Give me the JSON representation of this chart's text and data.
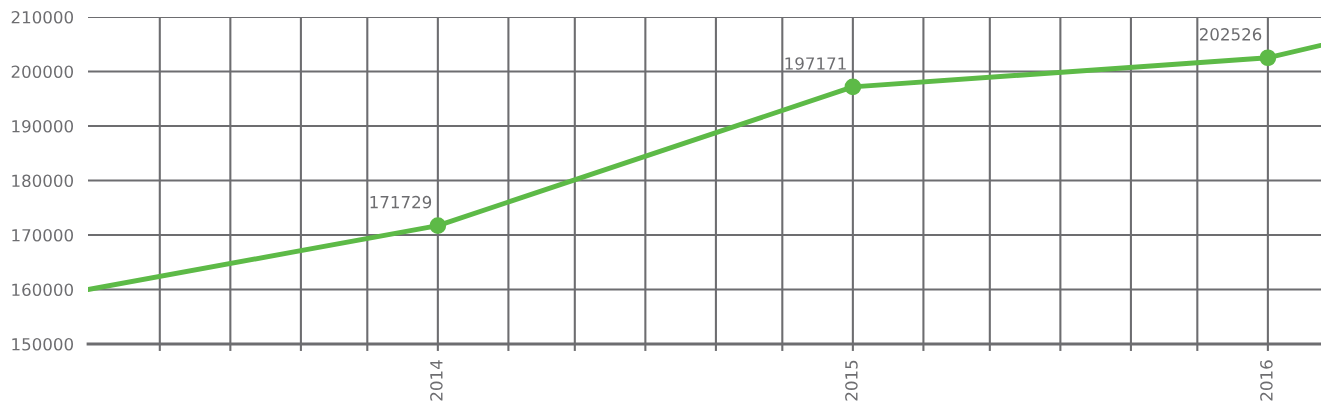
{
  "chart_data": {
    "type": "line",
    "series": [
      {
        "color": "#5dba47",
        "x": [
          2013.157,
          2014,
          2015,
          2016,
          2016.128
        ],
        "values": [
          160000,
          171729,
          197171,
          202526,
          204800
        ],
        "value_labels": [
          null,
          "171729",
          "197171",
          "202526",
          null
        ]
      }
    ],
    "xlim": [
      2013.157,
      2016.128
    ],
    "xticks": [
      {
        "value": 2013.33,
        "label": null
      },
      {
        "value": 2013.5,
        "label": null
      },
      {
        "value": 2013.67,
        "label": null
      },
      {
        "value": 2013.83,
        "label": null
      },
      2014,
      {
        "value": 2014.17,
        "label": null
      },
      {
        "value": 2014.33,
        "label": null
      },
      {
        "value": 2014.5,
        "label": null
      },
      {
        "value": 2014.67,
        "label": null
      },
      {
        "value": 2014.83,
        "label": null
      },
      2015,
      {
        "value": 2015.17,
        "label": null
      },
      {
        "value": 2015.33,
        "label": null
      },
      {
        "value": 2015.5,
        "label": null
      },
      {
        "value": 2015.67,
        "label": null
      },
      {
        "value": 2015.83,
        "label": null
      },
      2016
    ],
    "ylim": [
      150000,
      210000
    ],
    "yticks": [
      150000,
      160000,
      170000,
      180000,
      190000,
      200000,
      210000
    ],
    "grid": true,
    "marker": "circle",
    "line_style": "solid"
  }
}
